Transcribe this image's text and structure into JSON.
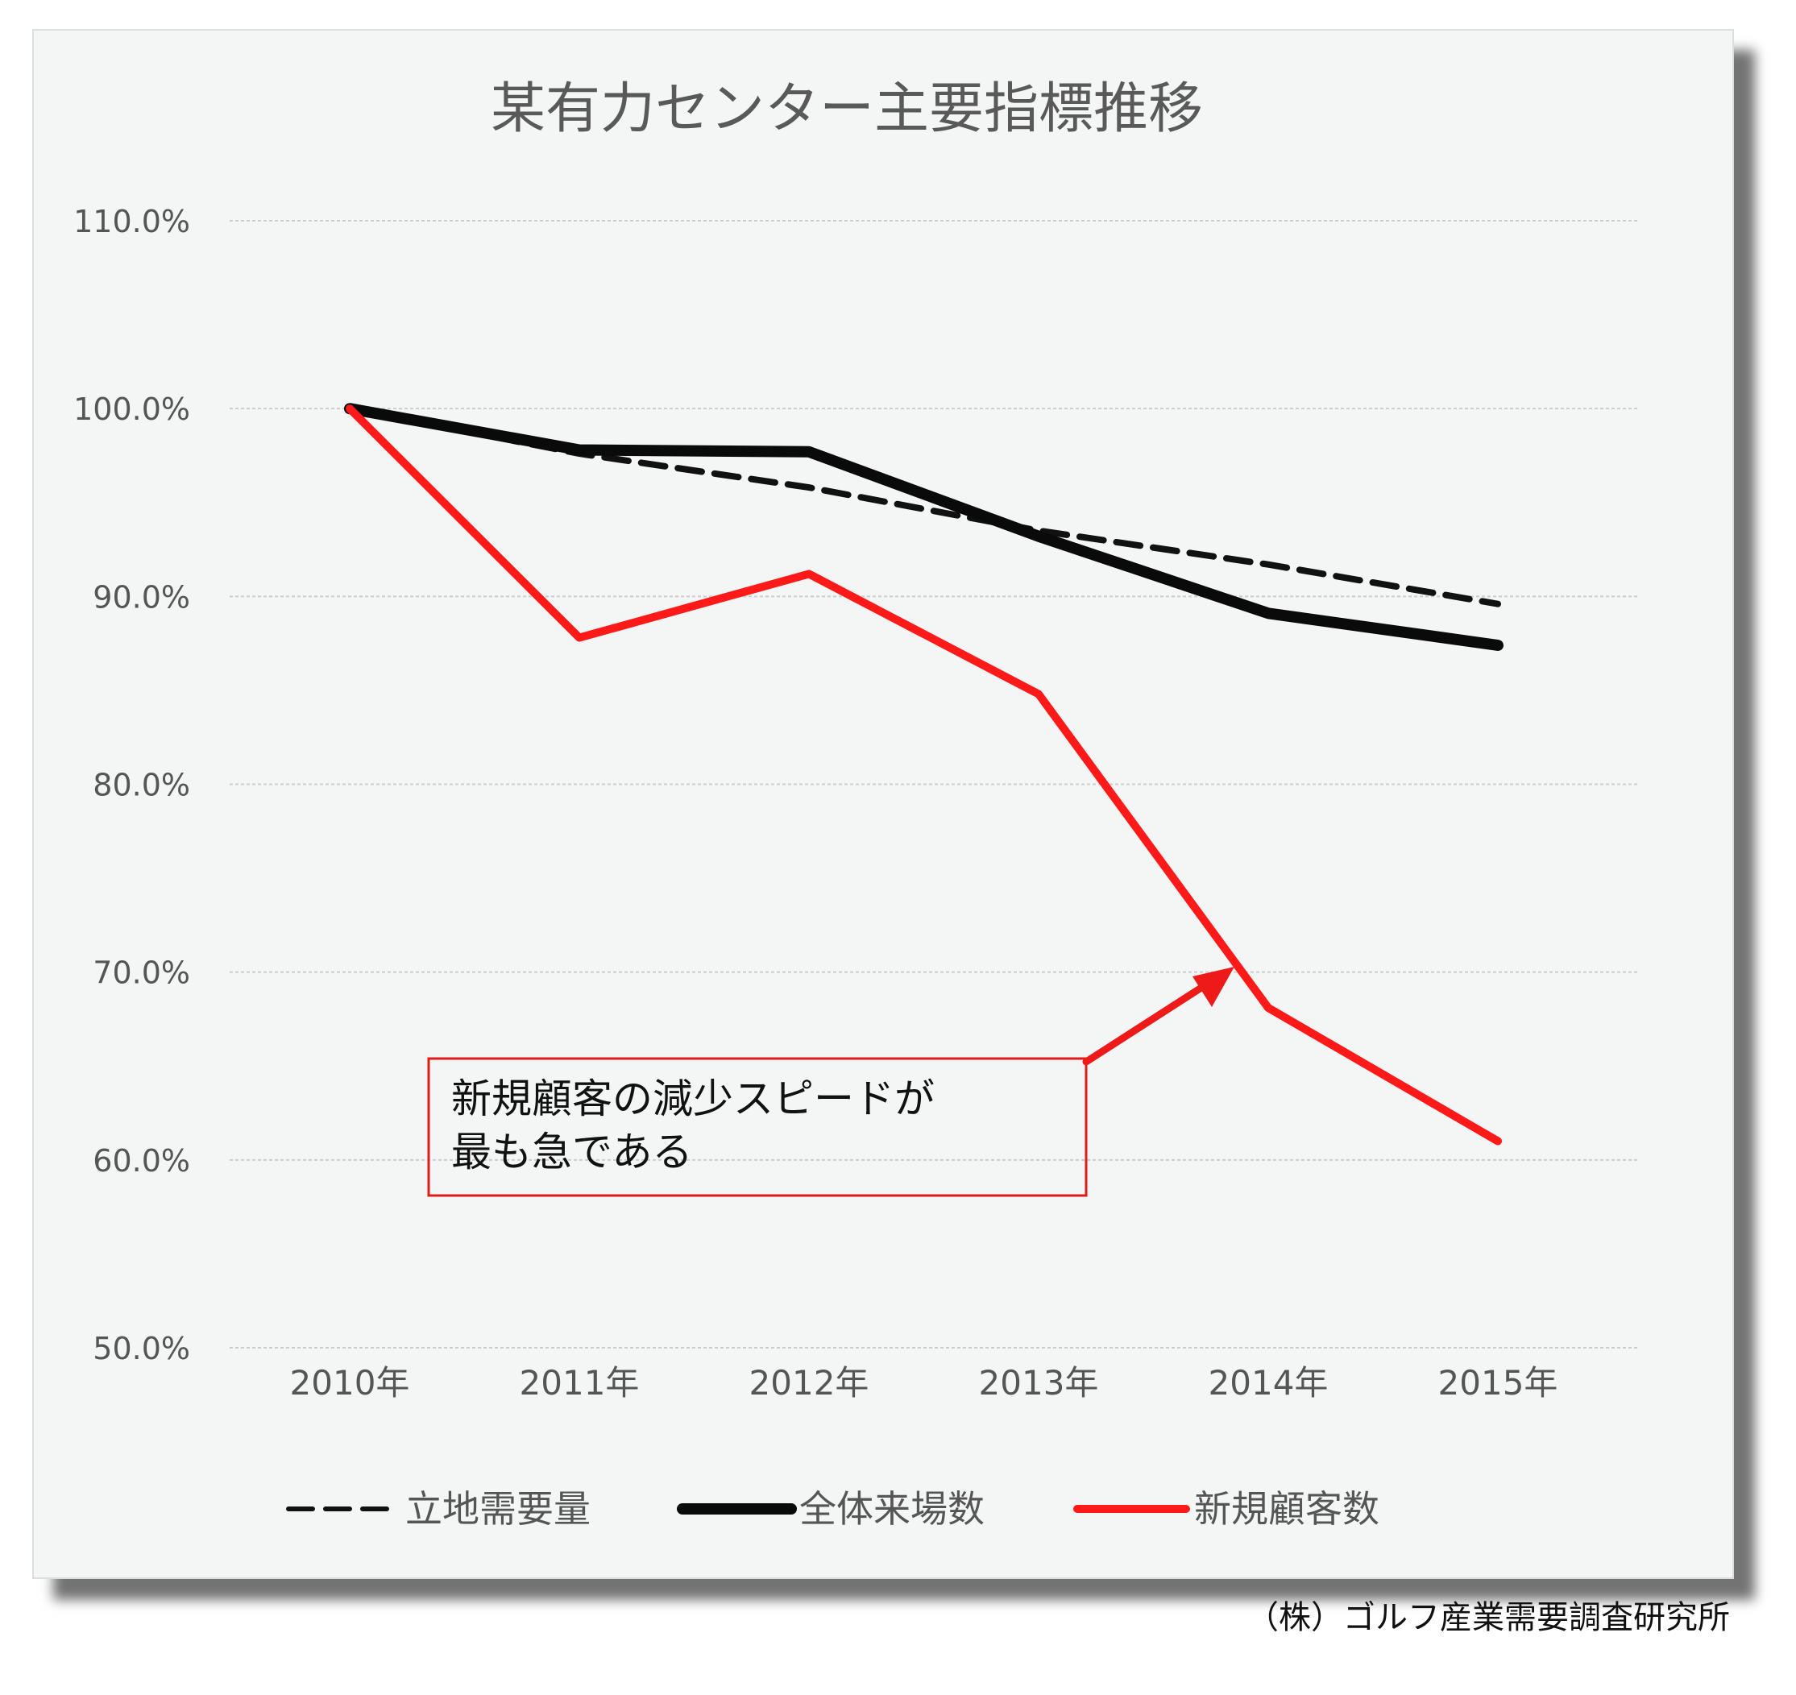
{
  "chart_data": {
    "type": "line",
    "title": "某有力センター主要指標推移",
    "categories": [
      "2010年",
      "2011年",
      "2012年",
      "2013年",
      "2014年",
      "2015年"
    ],
    "ylim": [
      50,
      110
    ],
    "yticks": [
      "110.0%",
      "100.0%",
      "90.0%",
      "80.0%",
      "70.0%",
      "60.0%",
      "50.0%"
    ],
    "grid": true,
    "legend_position": "bottom",
    "series": [
      {
        "name": "立地需要量",
        "values": [
          100.0,
          97.6,
          95.8,
          93.5,
          91.7,
          89.6
        ],
        "color": "#111111",
        "style": "dashed"
      },
      {
        "name": "全体来場数",
        "values": [
          100.0,
          97.8,
          97.7,
          93.2,
          89.1,
          87.4
        ],
        "color": "#0a0a0a",
        "style": "solid"
      },
      {
        "name": "新規顧客数",
        "values": [
          100.0,
          87.8,
          91.2,
          84.8,
          68.1,
          61.0
        ],
        "color": "#ff1a1a",
        "style": "solid"
      }
    ],
    "annotation": {
      "lines": [
        "新規顧客の減少スピードが",
        "最も急である"
      ],
      "color": "#e01b1b"
    }
  },
  "source": "（株）ゴルフ産業需要調査研究所"
}
